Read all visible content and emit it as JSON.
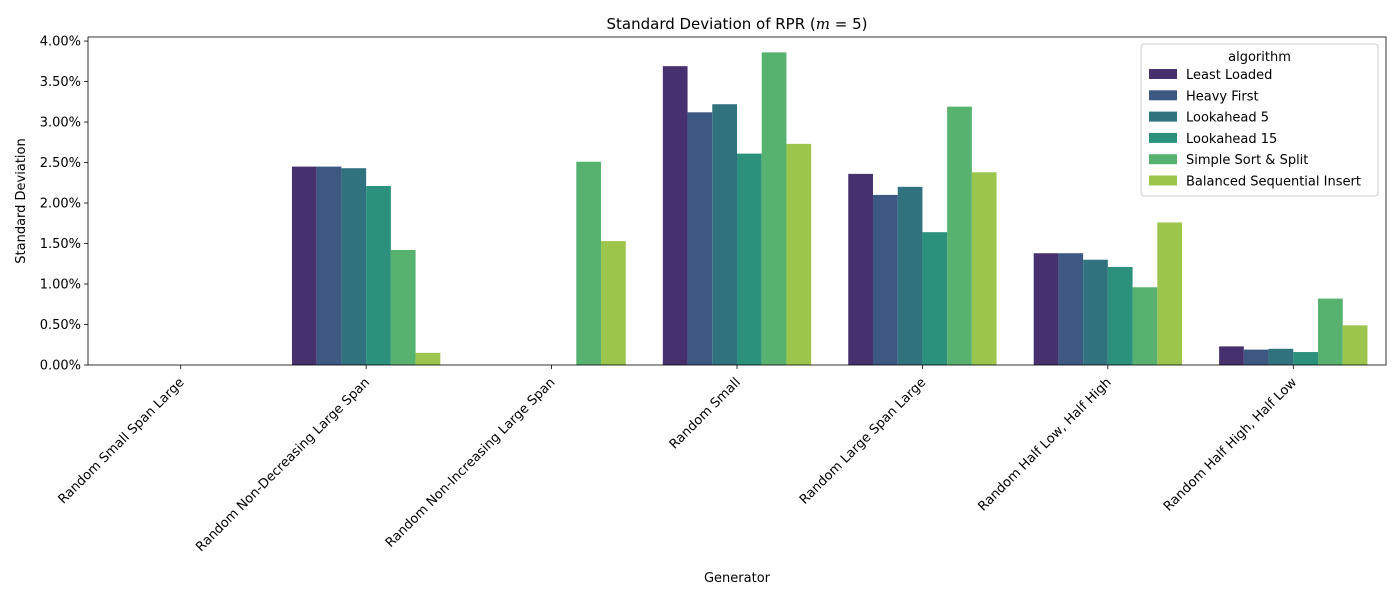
{
  "chart_data": {
    "type": "bar",
    "title_prefix": "Standard Deviation of RPR (",
    "title_math": "m",
    "title_suffix": " = 5)",
    "xlabel": "Generator",
    "ylabel": "Standard Deviation",
    "ylim": [
      0,
      4.05
    ],
    "yticks": [
      0,
      0.5,
      1.0,
      1.5,
      2.0,
      2.5,
      3.0,
      3.5,
      4.0
    ],
    "ytick_labels": [
      "0.00%",
      "0.50%",
      "1.00%",
      "1.50%",
      "2.00%",
      "2.50%",
      "3.00%",
      "3.50%",
      "4.00%"
    ],
    "y_unit": "percent",
    "grid": false,
    "legend_title": "algorithm",
    "legend_position": "top-right",
    "categories": [
      "Random Small Span Large",
      "Random Non-Decreasing Large Span",
      "Random Non-Increasing Large Span",
      "Random Small",
      "Random Large Span Large",
      "Random Half Low, Half High",
      "Random Half High, Half Low"
    ],
    "series": [
      {
        "name": "Least Loaded",
        "color": "#47306e",
        "values": [
          0,
          2.45,
          0,
          3.69,
          2.36,
          1.38,
          0.23
        ]
      },
      {
        "name": "Heavy First",
        "color": "#3d5883",
        "values": [
          0,
          2.45,
          0,
          3.12,
          2.1,
          1.38,
          0.19
        ]
      },
      {
        "name": "Lookahead 5",
        "color": "#31727f",
        "values": [
          0,
          2.43,
          0,
          3.22,
          2.2,
          1.3,
          0.2
        ]
      },
      {
        "name": "Lookahead 15",
        "color": "#2b907c",
        "values": [
          0,
          2.21,
          0,
          2.61,
          1.64,
          1.21,
          0.16
        ]
      },
      {
        "name": "Simple Sort & Split",
        "color": "#58b26f",
        "values": [
          0,
          1.42,
          2.51,
          3.86,
          3.19,
          0.96,
          0.82
        ]
      },
      {
        "name": "Balanced Sequential Insert",
        "color": "#9bc54d",
        "values": [
          0,
          0.15,
          1.53,
          2.73,
          2.38,
          1.76,
          0.49
        ]
      }
    ]
  }
}
